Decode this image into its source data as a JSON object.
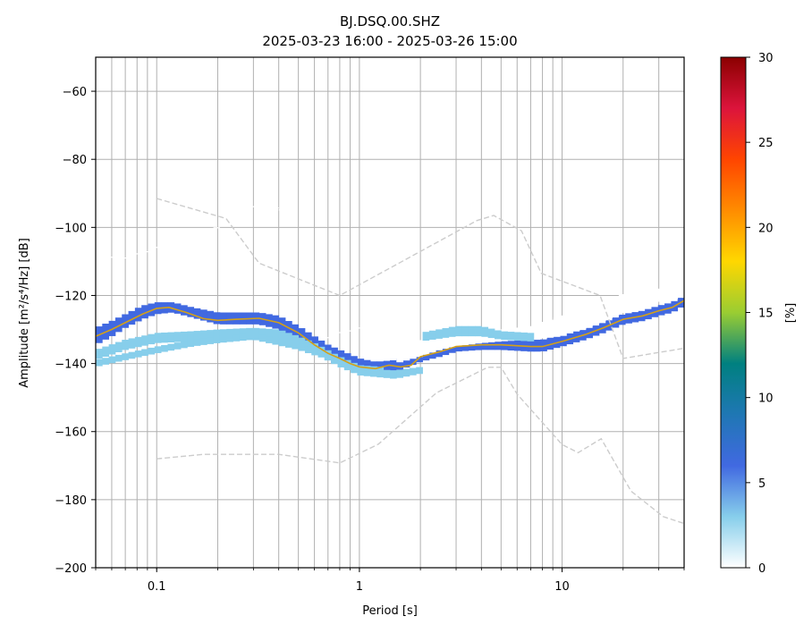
{
  "chart_data": {
    "type": "heatmap",
    "title": "BJ.DSQ.00.SHZ",
    "subtitle": "2025-03-23 16:00 - 2025-03-26 15:00",
    "xlabel": "Period [s]",
    "ylabel": "Amplitude [m²/s⁴/Hz] [dB]",
    "x_scale": "log",
    "xlim": [
      0.05,
      40
    ],
    "ylim": [
      -200,
      -50
    ],
    "x_tick_labels": [
      {
        "value": 0.1,
        "label": "0.1"
      },
      {
        "value": 1,
        "label": "1"
      },
      {
        "value": 10,
        "label": "10"
      }
    ],
    "y_tick_labels": [
      {
        "value": -60,
        "label": "−60"
      },
      {
        "value": -80,
        "label": "−80"
      },
      {
        "value": -100,
        "label": "−100"
      },
      {
        "value": -120,
        "label": "−120"
      },
      {
        "value": -140,
        "label": "−140"
      },
      {
        "value": -160,
        "label": "−160"
      },
      {
        "value": -180,
        "label": "−180"
      },
      {
        "value": -200,
        "label": "−200"
      }
    ],
    "grid": true,
    "colorbar": {
      "label": "[%]",
      "range": [
        0,
        30
      ],
      "ticks": [
        0,
        5,
        10,
        15,
        20,
        25,
        30
      ],
      "tick_labels": [
        "0",
        "5",
        "10",
        "15",
        "20",
        "25",
        "30"
      ],
      "colors": [
        "#ffffff",
        "#87ceeb",
        "#4169e1",
        "#1f77b4",
        "#008080",
        "#9acd32",
        "#ffd700",
        "#ff8c00",
        "#ff4500",
        "#dc143c",
        "#8b0000"
      ]
    },
    "mean_curve": {
      "color": "#d4a017",
      "x": [
        0.05,
        0.06,
        0.07,
        0.085,
        0.1,
        0.115,
        0.14,
        0.17,
        0.2,
        0.25,
        0.32,
        0.4,
        0.5,
        0.6,
        0.7,
        0.8,
        0.9,
        1.0,
        1.2,
        1.4,
        1.6,
        1.8,
        2.0,
        2.5,
        3.0,
        4.0,
        5.0,
        7.0,
        8.0,
        10.0,
        13.0,
        16.0,
        20.0,
        25.0,
        30.0,
        35.0,
        40.0
      ],
      "y": [
        -132,
        -130,
        -128,
        -125.5,
        -123.8,
        -123.5,
        -125,
        -126.8,
        -127.3,
        -127,
        -126.7,
        -128,
        -131,
        -134.5,
        -137,
        -138.5,
        -140,
        -141,
        -141.5,
        -140.5,
        -141,
        -140.5,
        -138,
        -136.5,
        -135,
        -134.5,
        -134.5,
        -135,
        -135,
        -133.5,
        -131.5,
        -129.5,
        -127,
        -126,
        -124.5,
        -123.5,
        -121.5
      ]
    },
    "reference_curves": {
      "color": "#cccccc",
      "style": "dashed",
      "high_noise": {
        "x": [
          0.1,
          0.22,
          0.32,
          0.8,
          3.8,
          4.6,
          6.3,
          7.9,
          15.4,
          20.0,
          40.0
        ],
        "y": [
          -91.5,
          -97.4,
          -110.5,
          -120,
          -98,
          -96.5,
          -101,
          -113.5,
          -120,
          -138.5,
          -135.5
        ]
      },
      "low_noise": {
        "x": [
          0.1,
          0.17,
          0.4,
          0.8,
          1.24,
          2.4,
          4.3,
          5.0,
          6.0,
          10.0,
          12.0,
          15.6,
          21.9,
          31.6,
          40.0
        ],
        "y": [
          -168,
          -166.7,
          -166.7,
          -169.2,
          -163.7,
          -148.6,
          -141.1,
          -141.1,
          -149,
          -163.8,
          -166.2,
          -162.1,
          -177.5,
          -185,
          -187
        ]
      }
    },
    "density_bands": [
      {
        "x": [
          0.05,
          0.06,
          0.07,
          0.085,
          0.1,
          0.12,
          0.15,
          0.2,
          0.25,
          0.32,
          0.4,
          0.5,
          0.6,
          0.7,
          0.8,
          1.0,
          1.2,
          1.5,
          2.0,
          2.5,
          3.0,
          4.0,
          5.0,
          7.0,
          8.0,
          10.0,
          13.0,
          16.0,
          20.0,
          25.0,
          30.0,
          35.0,
          40.0
        ],
        "lower": [
          -134.5,
          -132,
          -129.5,
          -127,
          -125.5,
          -125,
          -126.5,
          -128.5,
          -128.5,
          -128.5,
          -130,
          -133,
          -136.5,
          -139,
          -140.5,
          -142.5,
          -143,
          -142.5,
          -139.5,
          -138,
          -136.5,
          -136,
          -136,
          -136.5,
          -136.5,
          -135,
          -133,
          -131,
          -128.5,
          -127.5,
          -126,
          -125,
          -123
        ],
        "upper": [
          -129.5,
          -127.5,
          -125.5,
          -123,
          -122,
          -122,
          -123.5,
          -125,
          -125,
          -125,
          -126,
          -129,
          -132,
          -134.5,
          -136,
          -138.5,
          -139.5,
          -139,
          -136.5,
          -134.5,
          -133,
          -132.5,
          -132.5,
          -133,
          -133,
          -131.5,
          -130,
          -128,
          -125.5,
          -124.5,
          -123,
          -122,
          -120
        ],
        "level": 7
      },
      {
        "x": [
          0.05,
          0.07,
          0.1,
          0.15,
          0.2,
          0.3,
          0.4,
          0.5,
          0.6,
          0.8,
          1.0,
          1.3
        ],
        "lower": [
          -139,
          -136,
          -134,
          -133.5,
          -133,
          -132,
          -133,
          -135,
          -137,
          -141,
          -143.5,
          -144
        ],
        "upper": [
          -136,
          -133,
          -131,
          -130.5,
          -130,
          -129.5,
          -130,
          -132,
          -134,
          -138,
          -140.5,
          -141
        ],
        "level": 3
      },
      {
        "x": [
          0.05,
          0.07,
          0.1,
          0.15,
          0.2,
          0.3,
          0.5,
          0.8,
          1.0,
          1.5,
          2.0
        ],
        "lower": [
          -141,
          -139,
          -137,
          -135,
          -134,
          -133,
          -136,
          -140,
          -143.5,
          -144.5,
          -143
        ],
        "upper": [
          -139,
          -137,
          -135,
          -133,
          -132,
          -131,
          -134,
          -138,
          -141.5,
          -142,
          -141
        ],
        "level": 2
      },
      {
        "x": [
          1.5,
          2.0,
          2.5,
          3.0,
          4.0,
          5.0,
          7.0,
          10.0,
          15.0,
          20.0,
          30.0,
          40.0
        ],
        "lower": [
          -140,
          -138,
          -136,
          -135,
          -134,
          -133.5,
          -133,
          -132,
          -128,
          -125,
          -122,
          -120.5
        ],
        "upper": [
          -136,
          -133,
          -131,
          -130.5,
          -130.5,
          -130,
          -129,
          -126,
          -122,
          -119.5,
          -118,
          -118
        ],
        "level": 1
      },
      {
        "x": [
          2.0,
          3.0,
          4.0,
          5.0,
          7.0
        ],
        "lower": [
          -133.5,
          -132,
          -132,
          -133,
          -133.5
        ],
        "upper": [
          -131,
          -129,
          -129,
          -130.5,
          -131
        ],
        "level": 3
      }
    ],
    "sparse_segments": [
      {
        "x": [
          0.05,
          0.07,
          0.1,
          0.15,
          0.2,
          0.25,
          0.3,
          0.35,
          0.45
        ],
        "y": [
          -108.5,
          -109,
          -106,
          -102.5,
          -100,
          -96.5,
          -94,
          -93.5,
          -95.5
        ],
        "level": 1
      },
      {
        "x": [
          0.5,
          0.6,
          0.8,
          1.0,
          1.3,
          1.7
        ],
        "y": [
          -136.5,
          -134,
          -131,
          -129.5,
          -131,
          -134
        ],
        "level": 1
      }
    ]
  }
}
